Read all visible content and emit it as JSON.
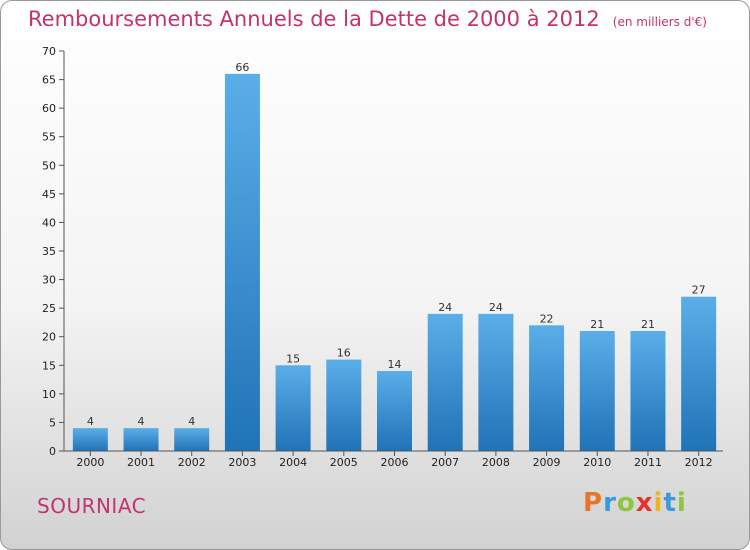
{
  "title": "Remboursements Annuels de la Dette de 2000 à 2012",
  "unit": "(en milliers d'€)",
  "city": "SOURNIAC",
  "logo": {
    "letters": [
      "P",
      "r",
      "o",
      "x",
      "i",
      "t",
      "i"
    ],
    "colors": [
      "#e8732a",
      "#3a9ad9",
      "#8cc63e",
      "#e8312a",
      "#f2b21c",
      "#3a9ad9",
      "#8cc63e"
    ]
  },
  "colors": {
    "bar_top": "#5aaee8",
    "bar_bottom": "#1f73b7",
    "title": "#c2346b"
  },
  "chart_data": {
    "type": "bar",
    "title": "Remboursements Annuels de la Dette de 2000 à 2012",
    "xlabel": "",
    "ylabel": "",
    "categories": [
      "2000",
      "2001",
      "2002",
      "2003",
      "2004",
      "2005",
      "2006",
      "2007",
      "2008",
      "2009",
      "2010",
      "2011",
      "2012"
    ],
    "values": [
      4,
      4,
      4,
      66,
      15,
      16,
      14,
      24,
      24,
      22,
      21,
      21,
      27
    ],
    "ylim": [
      0,
      70
    ],
    "yticks": [
      0,
      5,
      10,
      15,
      20,
      25,
      30,
      35,
      40,
      45,
      50,
      55,
      60,
      65,
      70
    ],
    "grid": false
  }
}
